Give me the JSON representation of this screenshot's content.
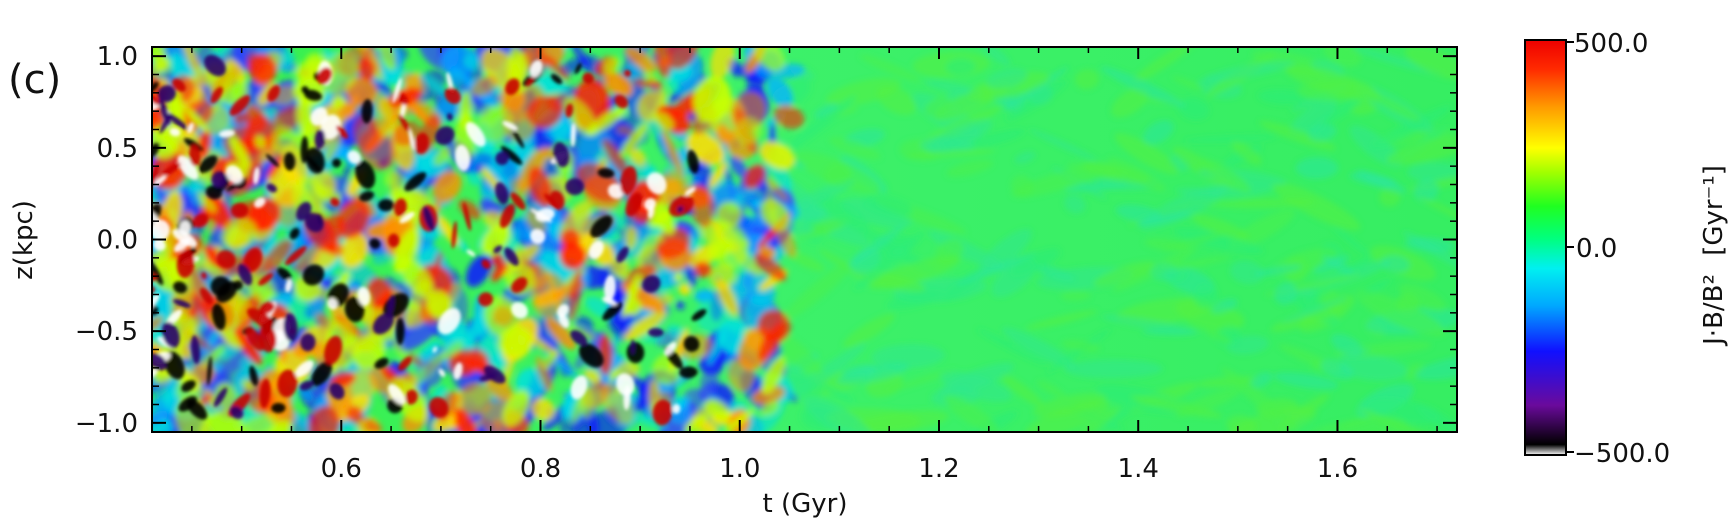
{
  "chart_data": {
    "type": "heatmap",
    "panel_label": "(c)",
    "xlabel": "t (Gyr)",
    "ylabel": "z(kpc)",
    "xlim": [
      0.41,
      1.72
    ],
    "ylim": [
      -1.05,
      1.05
    ],
    "xticks": [
      0.6,
      0.8,
      1.0,
      1.2,
      1.4,
      1.6
    ],
    "xtick_labels": [
      "0.6",
      "0.8",
      "1.0",
      "1.2",
      "1.4",
      "1.6"
    ],
    "yticks": [
      1.0,
      0.5,
      0.0,
      -0.5,
      -1.0
    ],
    "ytick_labels": [
      "1.0",
      "0.5",
      "0.0",
      "−0.5",
      "−1.0"
    ],
    "colorbar": {
      "label_main": "J·B/B²",
      "label_unit": "[Gyr⁻¹]",
      "min": -500.0,
      "max": 500.0,
      "tick_labels": [
        "500.0",
        "0.0",
        "−500.0"
      ],
      "colormap": "rainbow (white-black-purple-blue-cyan-green-yellow-orange-red)"
    },
    "description_of_field": "strong positive/negative structures at early t (0.41-1.0 Gyr), smooth near-zero green field after ~1.05 Gyr"
  }
}
